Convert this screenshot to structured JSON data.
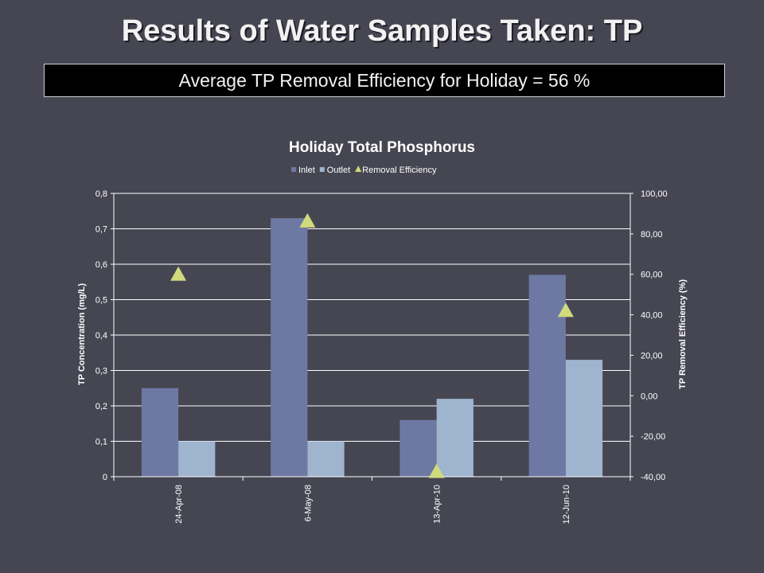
{
  "slide": {
    "title": "Results of Water Samples Taken: TP",
    "summary": "Average TP Removal Efficiency  for  Holiday =  56 %"
  },
  "chart_data": {
    "type": "bar",
    "title": "Holiday Total Phosphorus",
    "categories": [
      "24-Apr-08",
      "6-May-08",
      "13-Apr-10",
      "12-Jun-10"
    ],
    "series": [
      {
        "name": "Inlet",
        "type": "bar",
        "axis": "left",
        "color": "#6e79a3",
        "values": [
          0.25,
          0.73,
          0.16,
          0.57
        ]
      },
      {
        "name": "Outlet",
        "type": "bar",
        "axis": "left",
        "color": "#9fb4cf",
        "values": [
          0.1,
          0.1,
          0.22,
          0.33
        ]
      },
      {
        "name": "Removal Efficiency",
        "type": "scatter",
        "marker": "triangle",
        "axis": "right",
        "color": "#d1da7c",
        "values": [
          60,
          86.3,
          -37.5,
          42.1
        ]
      }
    ],
    "ylabel": "TP  Concentration  (mg/L)",
    "y2label": "TP Removal Efficiency (%)",
    "ylim": [
      0,
      0.8
    ],
    "y2lim": [
      -40,
      100
    ],
    "yticks": [
      "0",
      "0,1",
      "0,2",
      "0,3",
      "0,4",
      "0,5",
      "0,6",
      "0,7",
      "0,8"
    ],
    "y2ticks": [
      "-40,00",
      "-20,00",
      "0,00",
      "20,00",
      "40,00",
      "60,00",
      "80,00",
      "100,00"
    ],
    "grid": true,
    "legend_position": "top"
  }
}
